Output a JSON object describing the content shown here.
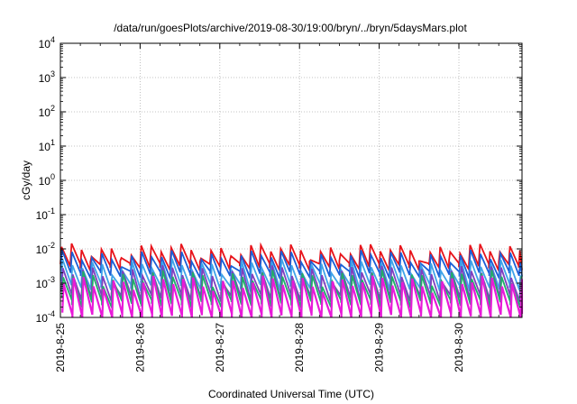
{
  "chart_data": {
    "type": "line",
    "title": "/data/run/goesPlots/archive/2019-08-30/19:00/bryn/../bryn/5daysMars.plot",
    "xlabel": "Coordinated Universal Time (UTC)",
    "ylabel": "cGy/day",
    "y_scale": "log",
    "ylim": [
      0.0001,
      10000
    ],
    "xlim": [
      "2019-08-25",
      "2019-08-30 19:00"
    ],
    "x_tick_labels": [
      "2019-8-25",
      "2019-8-26",
      "2019-8-27",
      "2019-8-28",
      "2019-8-29",
      "2019-8-30"
    ],
    "y_tick_labels": [
      {
        "base": "10",
        "exp": "-4"
      },
      {
        "base": "10",
        "exp": "-3"
      },
      {
        "base": "10",
        "exp": "-2"
      },
      {
        "base": "10",
        "exp": "-1"
      },
      {
        "base": "10",
        "exp": "0"
      },
      {
        "base": "10",
        "exp": "1"
      },
      {
        "base": "10",
        "exp": "2"
      },
      {
        "base": "10",
        "exp": "3"
      },
      {
        "base": "10",
        "exp": "4"
      }
    ],
    "grid": true,
    "pattern": "sawtooth",
    "cycle_hours": 3,
    "series": [
      {
        "color": "#e8141b",
        "peak": 0.0095,
        "trough": 0.0036
      },
      {
        "color": "#1a5fd6",
        "peak": 0.0062,
        "trough": 0.0021
      },
      {
        "color": "#3fa3e8",
        "peak": 0.0034,
        "trough": 0.0009
      },
      {
        "color": "#7f3fbf",
        "peak": 0.0022,
        "trough": 0.00045
      },
      {
        "color": "#1fae6a",
        "peak": 0.0016,
        "trough": 0.0003
      },
      {
        "color": "#e81ad8",
        "peak": 0.0011,
        "trough": 0.00012
      }
    ]
  }
}
